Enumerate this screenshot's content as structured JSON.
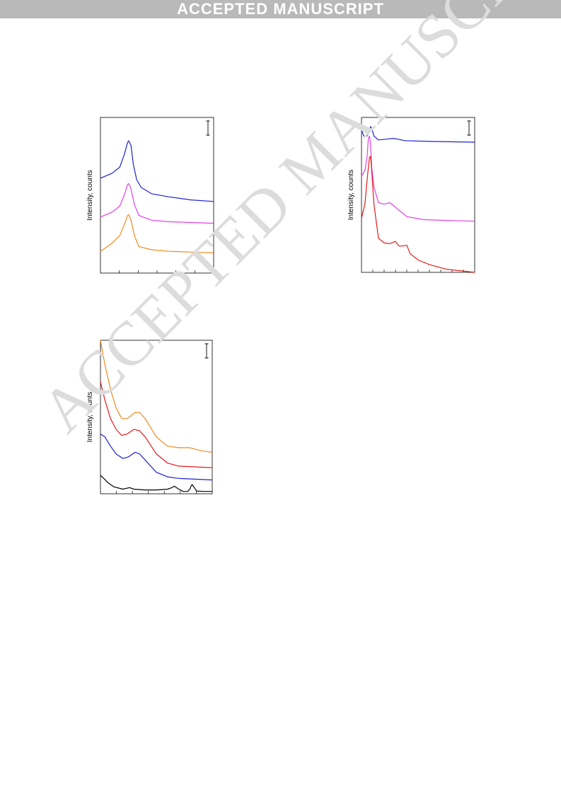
{
  "banner_text": "ACCEPTED MANUSCRIPT",
  "watermark_text": "ACCEPTED MANUSCRIPT",
  "chart_data": [
    {
      "type": "line",
      "ylabel": "Intensity, counts",
      "xlim": [
        0,
        100
      ],
      "ylim": [
        0,
        100
      ],
      "ticks_bottom": 6,
      "scale_bar": true,
      "series": [
        {
          "color": "#1f1fd6",
          "points": [
            [
              0,
              61
            ],
            [
              10,
              64
            ],
            [
              17,
              68
            ],
            [
              21,
              76
            ],
            [
              24,
              84
            ],
            [
              25,
              85
            ],
            [
              27,
              82
            ],
            [
              29,
              70
            ],
            [
              32,
              60
            ],
            [
              36,
              55
            ],
            [
              45,
              51
            ],
            [
              60,
              49
            ],
            [
              80,
              47
            ],
            [
              100,
              46
            ]
          ]
        },
        {
          "color": "#e43fe6",
          "points": [
            [
              0,
              36
            ],
            [
              10,
              39
            ],
            [
              17,
              43
            ],
            [
              21,
              50
            ],
            [
              24,
              57
            ],
            [
              25,
              57.5
            ],
            [
              27,
              54
            ],
            [
              30,
              44
            ],
            [
              34,
              37
            ],
            [
              45,
              34
            ],
            [
              60,
              33
            ],
            [
              80,
              32.5
            ],
            [
              100,
              32
            ]
          ]
        },
        {
          "color": "#f28a1f",
          "points": [
            [
              0,
              14
            ],
            [
              10,
              19
            ],
            [
              17,
              24
            ],
            [
              21,
              31
            ],
            [
              24,
              37
            ],
            [
              25,
              37.5
            ],
            [
              27,
              34
            ],
            [
              30,
              24
            ],
            [
              34,
              17
            ],
            [
              45,
              15
            ],
            [
              60,
              14
            ],
            [
              80,
              13.5
            ],
            [
              100,
              13
            ]
          ]
        }
      ]
    },
    {
      "type": "line",
      "ylabel": "Intensity, counts",
      "xlim": [
        0,
        100
      ],
      "ylim": [
        0,
        100
      ],
      "ticks_bottom": 10,
      "scale_bar": true,
      "series": [
        {
          "color": "#1f1fd6",
          "points": [
            [
              0,
              92
            ],
            [
              2,
              88
            ],
            [
              5,
              88
            ],
            [
              7,
              91
            ],
            [
              8,
              94
            ],
            [
              9,
              93
            ],
            [
              11,
              88
            ],
            [
              15,
              85.5
            ],
            [
              22,
              86
            ],
            [
              28,
              86.5
            ],
            [
              32,
              86
            ],
            [
              38,
              85
            ],
            [
              60,
              84.5
            ],
            [
              100,
              84
            ]
          ]
        },
        {
          "color": "#e43fe6",
          "points": [
            [
              0,
              62
            ],
            [
              3,
              66
            ],
            [
              5,
              75
            ],
            [
              6,
              86
            ],
            [
              7,
              88
            ],
            [
              8,
              83
            ],
            [
              9,
              68
            ],
            [
              11,
              55
            ],
            [
              15,
              45
            ],
            [
              20,
              44
            ],
            [
              25,
              45
            ],
            [
              30,
              42
            ],
            [
              40,
              36
            ],
            [
              55,
              34
            ],
            [
              75,
              33.5
            ],
            [
              100,
              33
            ]
          ]
        },
        {
          "color": "#e31a1c",
          "points": [
            [
              0,
              35
            ],
            [
              3,
              44
            ],
            [
              5,
              60
            ],
            [
              7,
              74
            ],
            [
              8,
              75
            ],
            [
              9,
              66
            ],
            [
              11,
              44
            ],
            [
              15,
              22
            ],
            [
              20,
              19
            ],
            [
              25,
              18.5
            ],
            [
              30,
              20
            ],
            [
              33,
              17
            ],
            [
              36,
              17
            ],
            [
              40,
              17.5
            ],
            [
              43,
              12
            ],
            [
              50,
              8
            ],
            [
              60,
              5
            ],
            [
              75,
              2
            ],
            [
              100,
              0
            ]
          ]
        }
      ]
    },
    {
      "type": "line",
      "ylabel": "Intensity, counts",
      "xlim": [
        0,
        100
      ],
      "ylim": [
        0,
        100
      ],
      "ticks_bottom": 7,
      "scale_bar": true,
      "series": [
        {
          "color": "#f28a1f",
          "points": [
            [
              0,
              100
            ],
            [
              4,
              84
            ],
            [
              9,
              68
            ],
            [
              14,
              56
            ],
            [
              19,
              49
            ],
            [
              24,
              49
            ],
            [
              31,
              53
            ],
            [
              35,
              53
            ],
            [
              40,
              49
            ],
            [
              50,
              37
            ],
            [
              60,
              31
            ],
            [
              70,
              30
            ],
            [
              80,
              30
            ],
            [
              90,
              28
            ],
            [
              100,
              27
            ]
          ]
        },
        {
          "color": "#e31a1c",
          "points": [
            [
              0,
              73
            ],
            [
              4,
              61
            ],
            [
              9,
              49
            ],
            [
              14,
              42
            ],
            [
              19,
              38
            ],
            [
              24,
              39
            ],
            [
              30,
              42
            ],
            [
              35,
              41
            ],
            [
              40,
              37
            ],
            [
              50,
              26
            ],
            [
              60,
              20
            ],
            [
              70,
              18
            ],
            [
              85,
              17.5
            ],
            [
              100,
              17
            ]
          ]
        },
        {
          "color": "#1f1fd6",
          "points": [
            [
              0,
              39
            ],
            [
              4,
              37
            ],
            [
              9,
              31
            ],
            [
              14,
              26
            ],
            [
              20,
              23
            ],
            [
              25,
              24
            ],
            [
              31,
              27
            ],
            [
              35,
              26
            ],
            [
              40,
              22
            ],
            [
              50,
              14
            ],
            [
              60,
              11
            ],
            [
              70,
              10
            ],
            [
              85,
              9.5
            ],
            [
              100,
              9
            ]
          ]
        },
        {
          "color": "#000000",
          "points": [
            [
              0,
              12
            ],
            [
              3,
              10
            ],
            [
              7,
              7
            ],
            [
              12,
              4.5
            ],
            [
              20,
              3
            ],
            [
              26,
              4
            ],
            [
              30,
              3
            ],
            [
              40,
              2.5
            ],
            [
              50,
              2.5
            ],
            [
              60,
              3
            ],
            [
              64,
              4
            ],
            [
              66,
              5
            ],
            [
              68,
              4
            ],
            [
              70,
              3
            ],
            [
              74,
              1.5
            ],
            [
              78,
              1.5
            ],
            [
              80,
              3
            ],
            [
              81,
              5
            ],
            [
              82,
              6
            ],
            [
              84,
              4
            ],
            [
              86,
              1.8
            ],
            [
              92,
              1.5
            ],
            [
              100,
              1.5
            ]
          ]
        }
      ]
    }
  ]
}
